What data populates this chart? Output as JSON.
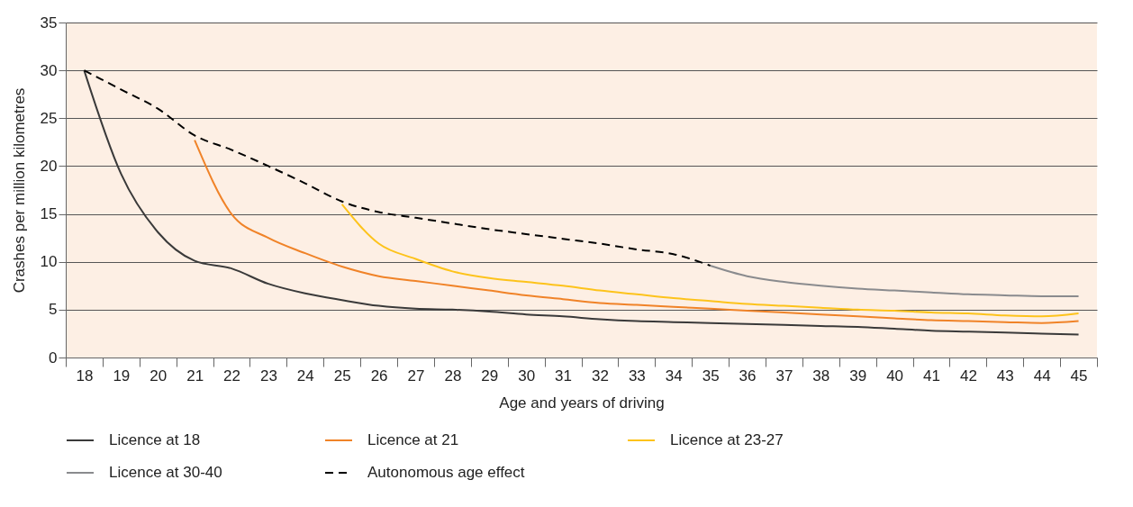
{
  "chart_data": {
    "type": "line",
    "xlabel": "Age and years of driving",
    "ylabel": "Crashes per million kilometres",
    "categories": [
      "18",
      "19",
      "20",
      "21",
      "22",
      "23",
      "24",
      "25",
      "26",
      "27",
      "28",
      "29",
      "30",
      "31",
      "32",
      "33",
      "34",
      "35",
      "36",
      "37",
      "38",
      "39",
      "40",
      "41",
      "42",
      "43",
      "44",
      "45"
    ],
    "ylim": [
      0,
      35
    ],
    "yticks": [
      0,
      5,
      10,
      15,
      20,
      25,
      30,
      35
    ],
    "grid": "y",
    "legend": "bottom",
    "marker": "none",
    "series": [
      {
        "name": "Licence at 18",
        "color": "#3a3a3a",
        "line_style": "solid",
        "values": [
          30,
          19.2,
          13.1,
          10.1,
          9.3,
          7.7,
          6.7,
          6.0,
          5.4,
          5.1,
          5.0,
          4.8,
          4.5,
          4.3,
          4.0,
          3.8,
          3.7,
          3.6,
          3.5,
          3.4,
          3.3,
          3.2,
          3.0,
          2.8,
          2.7,
          2.6,
          2.5,
          2.4
        ]
      },
      {
        "name": "Licence at 21",
        "color": "#f08328",
        "line_style": "solid",
        "values": [
          null,
          null,
          null,
          22.7,
          15.0,
          12.5,
          10.9,
          9.5,
          8.5,
          8.0,
          7.5,
          7.0,
          6.5,
          6.1,
          5.7,
          5.5,
          5.3,
          5.1,
          4.9,
          4.7,
          4.5,
          4.3,
          4.1,
          3.9,
          3.8,
          3.7,
          3.6,
          3.8
        ]
      },
      {
        "name": "Licence at 23-27",
        "color": "#fdc31b",
        "line_style": "solid",
        "values": [
          null,
          null,
          null,
          null,
          null,
          null,
          null,
          16.0,
          11.9,
          10.3,
          9.0,
          8.3,
          7.9,
          7.5,
          7.0,
          6.6,
          6.2,
          5.9,
          5.6,
          5.4,
          5.2,
          5.0,
          4.9,
          4.7,
          4.6,
          4.4,
          4.3,
          4.6
        ]
      },
      {
        "name": "Licence at 30-40",
        "color": "#8a8b8e",
        "line_style": "solid",
        "values": [
          null,
          null,
          null,
          null,
          null,
          null,
          null,
          null,
          null,
          null,
          null,
          null,
          null,
          null,
          null,
          null,
          null,
          9.6,
          8.5,
          7.9,
          7.5,
          7.2,
          7.0,
          6.8,
          6.6,
          6.5,
          6.4,
          6.4
        ]
      },
      {
        "name": "Autonomous age effect",
        "color": "#000000",
        "line_style": "dashed",
        "values": [
          30,
          28,
          26,
          23.2,
          21.7,
          20,
          18.2,
          16.3,
          15.2,
          14.6,
          14,
          13.4,
          12.9,
          12.4,
          11.9,
          11.3,
          10.8,
          9.6,
          null,
          null,
          null,
          null,
          null,
          null,
          null,
          null,
          null,
          null
        ]
      }
    ]
  }
}
